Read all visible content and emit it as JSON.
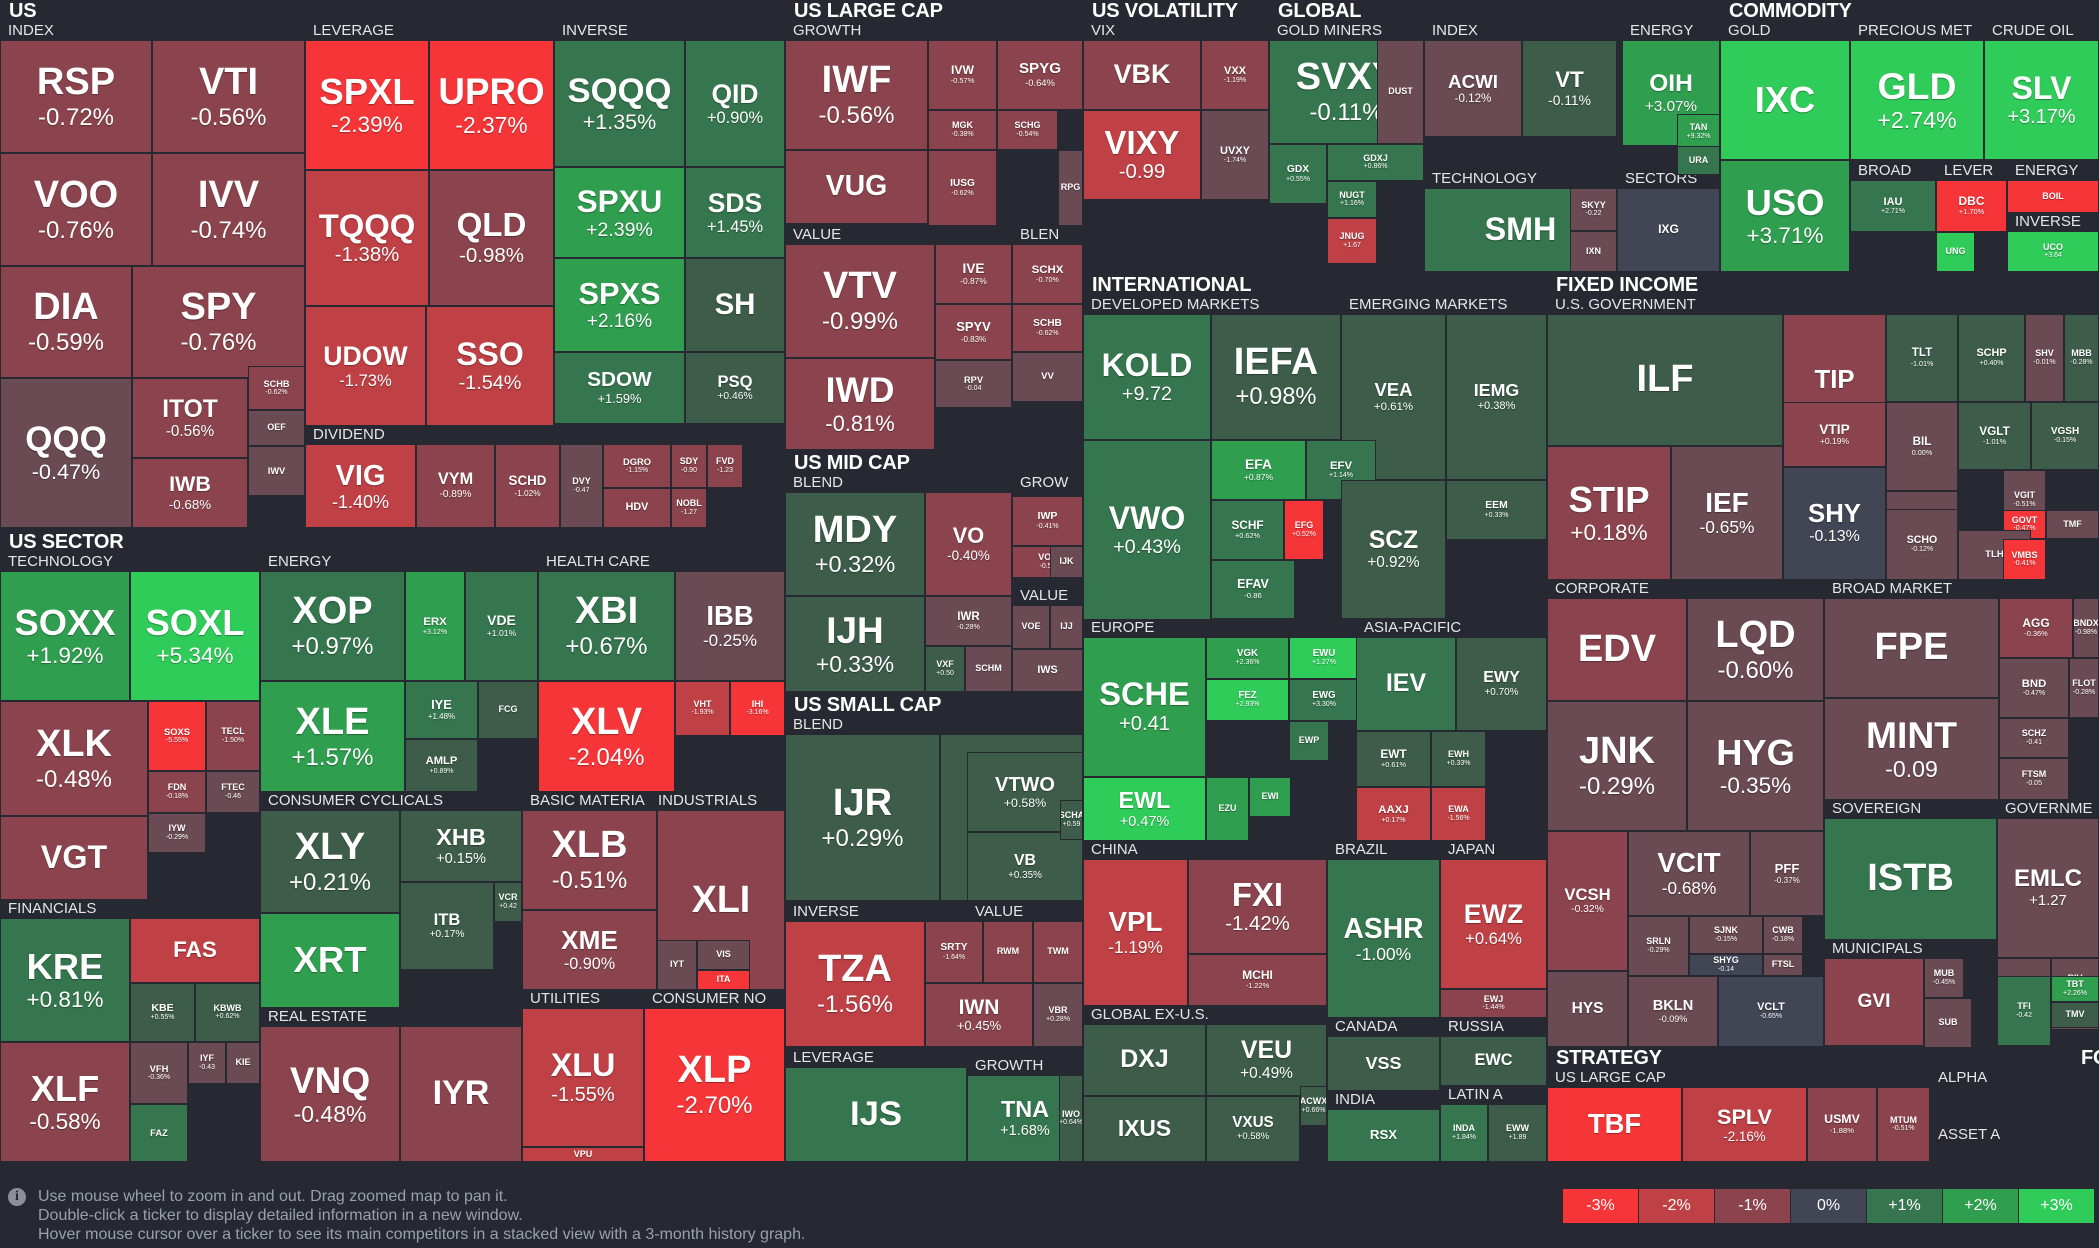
{
  "groups": [
    {
      "id": "us",
      "label": "US"
    },
    {
      "id": "us-sector",
      "label": "US SECTOR"
    },
    {
      "id": "us-large-cap",
      "label": "US LARGE CAP"
    },
    {
      "id": "us-mid-cap",
      "label": "US MID CAP"
    },
    {
      "id": "us-small-cap",
      "label": "US SMALL CAP"
    },
    {
      "id": "us-volatility",
      "label": "US VOLATILITY"
    },
    {
      "id": "global",
      "label": "GLOBAL"
    },
    {
      "id": "commodity",
      "label": "COMMODITY"
    },
    {
      "id": "international",
      "label": "INTERNATIONAL"
    },
    {
      "id": "fixed-income",
      "label": "FIXED INCOME"
    },
    {
      "id": "strategy",
      "label": "STRATEGY"
    },
    {
      "id": "fo",
      "label": "FO"
    }
  ],
  "subgroups": [
    "INDEX",
    "LEVERAGE",
    "INVERSE",
    "DIVIDEND",
    "TECHNOLOGY",
    "ENERGY",
    "HEALTH CARE",
    "CONSUMER CYCLICALS",
    "BASIC MATERIA",
    "INDUSTRIALS",
    "FINANCIALS",
    "REAL ESTATE",
    "UTILITIES",
    "CONSUMER NO",
    "GROWTH",
    "VALUE",
    "BLEN",
    "BLEND",
    "GROW",
    "VALUE",
    "BLEND",
    "INVERSE",
    "VALUE",
    "LEVERAGE",
    "GROWTH",
    "VIX",
    "LEVERAGE",
    "INVERS",
    "GOLD MINERS",
    "INDEX",
    "TECHNOLOGY",
    "SECTORS",
    "ENERGY",
    "GOLD",
    "PRECIOUS MET",
    "CRUDE OIL",
    "BROAD",
    "LEVER",
    "ENERGY",
    "INVERSE",
    "DEVELOPED MARKETS",
    "EMERGING MARKETS",
    "EUROPE",
    "ASIA-PACIFIC",
    "CHINA",
    "BRAZIL",
    "JAPAN",
    "GLOBAL EX-U.S.",
    "CANADA",
    "RUSSIA",
    "INDIA",
    "LATIN A",
    "U.S. GOVERNMENT",
    "CORPORATE",
    "BROAD MARKET",
    "SOVEREIGN",
    "GOVERNME",
    "MUNICIPALS",
    "INVERSE",
    "US LARGE CAP",
    "ALPHA",
    "ASSET A"
  ],
  "tiles": [
    [
      "RSP",
      "-0.72%"
    ],
    [
      "VTI",
      "-0.56%"
    ],
    [
      "VOO",
      "-0.76%"
    ],
    [
      "IVV",
      "-0.74%"
    ],
    [
      "DIA",
      "-0.59%"
    ],
    [
      "SPY",
      "-0.76%"
    ],
    [
      "QQQ",
      "-0.47%"
    ],
    [
      "ITOT",
      "-0.56%"
    ],
    [
      "SCHB",
      "-0.62%"
    ],
    [
      "OEF",
      ""
    ],
    [
      "IWB",
      "-0.68%"
    ],
    [
      "IWV",
      ""
    ],
    [
      "SPXL",
      "-2.39%"
    ],
    [
      "UPRO",
      "-2.37%"
    ],
    [
      "TQQQ",
      "-1.38%"
    ],
    [
      "QLD",
      "-0.98%"
    ],
    [
      "UDOW",
      "-1.73%"
    ],
    [
      "SSO",
      "-1.54%"
    ],
    [
      "SQQQ",
      "+1.35%"
    ],
    [
      "QID",
      "+0.90%"
    ],
    [
      "SPXU",
      "+2.39%"
    ],
    [
      "SDS",
      "+1.45%"
    ],
    [
      "SPXS",
      "+2.16%"
    ],
    [
      "SH",
      ""
    ],
    [
      "SDOW",
      "+1.59%"
    ],
    [
      "PSQ",
      "+0.46%"
    ],
    [
      "VIG",
      "-1.40%"
    ],
    [
      "VYM",
      "-0.89%"
    ],
    [
      "SCHD",
      "-1.02%"
    ],
    [
      "DVY",
      "-0.47"
    ],
    [
      "DGRO",
      "-1.15%"
    ],
    [
      "SDY",
      "-0.90"
    ],
    [
      "FVD",
      "-1.23"
    ],
    [
      "HDV",
      ""
    ],
    [
      "NOBL",
      "-1.27"
    ],
    [
      "SOXX",
      "+1.92%"
    ],
    [
      "SOXL",
      "+5.34%"
    ],
    [
      "XLK",
      "-0.48%"
    ],
    [
      "SOXS",
      "-5.55%"
    ],
    [
      "TECL",
      "-1.50%"
    ],
    [
      "FDN",
      "-0.18%"
    ],
    [
      "FTEC",
      "-0.46"
    ],
    [
      "IYW",
      "-0.29%"
    ],
    [
      "VGT",
      ""
    ],
    [
      "XOP",
      "+0.97%"
    ],
    [
      "ERX",
      "+3.12%"
    ],
    [
      "VDE",
      "+1.01%"
    ],
    [
      "XLE",
      "+1.57%"
    ],
    [
      "IYE",
      "+1.48%"
    ],
    [
      "FCG",
      ""
    ],
    [
      "AMLP",
      "+0.89%"
    ],
    [
      "XBI",
      "+0.67%"
    ],
    [
      "IBB",
      "-0.25%"
    ],
    [
      "XLV",
      "-2.04%"
    ],
    [
      "VHT",
      "-1.93%"
    ],
    [
      "IHI",
      "-3.16%"
    ],
    [
      "XLY",
      "+0.21%"
    ],
    [
      "XHB",
      "+0.15%"
    ],
    [
      "XRT",
      ""
    ],
    [
      "ITB",
      "+0.17%"
    ],
    [
      "VCR",
      "+0.42"
    ],
    [
      "XLB",
      "-0.51%"
    ],
    [
      "XME",
      "-0.90%"
    ],
    [
      "XLI",
      ""
    ],
    [
      "IYT",
      ""
    ],
    [
      "VIS",
      ""
    ],
    [
      "ITA",
      ""
    ],
    [
      "KRE",
      "+0.81%"
    ],
    [
      "FAS",
      ""
    ],
    [
      "KBE",
      "+0.55%"
    ],
    [
      "KBWB",
      "+0.62%"
    ],
    [
      "XLF",
      "-0.58%"
    ],
    [
      "VFH",
      "-0.36%"
    ],
    [
      "IYF",
      "-0.43"
    ],
    [
      "KIE",
      ""
    ],
    [
      "FAZ",
      ""
    ],
    [
      "VNQ",
      "-0.48%"
    ],
    [
      "IYR",
      ""
    ],
    [
      "XLU",
      "-1.55%"
    ],
    [
      "VPU",
      ""
    ],
    [
      "XLP",
      "-2.70%"
    ],
    [
      "IWF",
      "-0.56%"
    ],
    [
      "IVW",
      "-0.57%"
    ],
    [
      "SPYG",
      "-0.64%"
    ],
    [
      "MGK",
      "-0.38%"
    ],
    [
      "SCHG",
      "-0.54%"
    ],
    [
      "VUG",
      ""
    ],
    [
      "IUSG",
      "-0.62%"
    ],
    [
      "RPG",
      ""
    ],
    [
      "VTV",
      "-0.99%"
    ],
    [
      "IVE",
      "-0.87%"
    ],
    [
      "SCHX",
      "-0.70%"
    ],
    [
      "SPYV",
      "-0.83%"
    ],
    [
      "SCHB",
      "-0.62%"
    ],
    [
      "IWD",
      "-0.81%"
    ],
    [
      "RPV",
      "-0.04"
    ],
    [
      "VV",
      ""
    ],
    [
      "MDY",
      "+0.32%"
    ],
    [
      "VO",
      "-0.40%"
    ],
    [
      "IWP",
      "-0.41%"
    ],
    [
      "VOT",
      "-0.52"
    ],
    [
      "IJK",
      ""
    ],
    [
      "IJH",
      "+0.33%"
    ],
    [
      "IWR",
      "-0.28%"
    ],
    [
      "VXF",
      "+0.50"
    ],
    [
      "SCHM",
      ""
    ],
    [
      "VOE",
      ""
    ],
    [
      "IJJ",
      ""
    ],
    [
      "IWS",
      ""
    ],
    [
      "IJR",
      "+0.29%"
    ],
    [
      "IWM",
      "+0.55%"
    ],
    [
      "VTWO",
      "+0.58%"
    ],
    [
      "VB",
      "+0.35%"
    ],
    [
      "SCHA",
      "+0.59"
    ],
    [
      "TZA",
      "-1.56%"
    ],
    [
      "SRTY",
      "-1.64%"
    ],
    [
      "RWM",
      ""
    ],
    [
      "TWM",
      ""
    ],
    [
      "IWN",
      "+0.45%"
    ],
    [
      "VBR",
      "+0.28%"
    ],
    [
      "IJS",
      ""
    ],
    [
      "TNA",
      "+1.68%"
    ],
    [
      "IWO",
      "+0.64%"
    ],
    [
      "VBK",
      ""
    ],
    [
      "VXX",
      "-1.19%"
    ],
    [
      "VIXY",
      "-0.99"
    ],
    [
      "UVXY",
      "-1.74%"
    ],
    [
      "SVXY",
      "-0.11%"
    ],
    [
      "GDX",
      "+0.55%"
    ],
    [
      "GDXJ",
      "+0.86%"
    ],
    [
      "NUGT",
      "+1.16%"
    ],
    [
      "JNUG",
      "+1.67"
    ],
    [
      "DUST",
      ""
    ],
    [
      "ACWI",
      "-0.12%"
    ],
    [
      "VT",
      "-0.11%"
    ],
    [
      "SMH",
      ""
    ],
    [
      "SKYY",
      "-0.22"
    ],
    [
      "IXN",
      ""
    ],
    [
      "IXG",
      ""
    ],
    [
      "OIH",
      "+3.07%"
    ],
    [
      "TAN",
      "+9.32%"
    ],
    [
      "URA",
      ""
    ],
    [
      "IXC",
      ""
    ],
    [
      "GLD",
      "+2.74%"
    ],
    [
      "SLV",
      "+3.17%"
    ],
    [
      "USO",
      "+3.71%"
    ],
    [
      "IAU",
      "+2.71%"
    ],
    [
      "DBC",
      "+1.70%"
    ],
    [
      "BOIL",
      ""
    ],
    [
      "UNG",
      ""
    ],
    [
      "UCO",
      "+3.64"
    ],
    [
      "KOLD",
      "+9.72"
    ],
    [
      "IEFA",
      "+0.98%"
    ],
    [
      "VEA",
      "+0.61%"
    ],
    [
      "IEMG",
      "+0.38%"
    ],
    [
      "VWO",
      "+0.43%"
    ],
    [
      "EFA",
      "+0.87%"
    ],
    [
      "EFV",
      "+1.14%"
    ],
    [
      "SCHF",
      "+0.62%"
    ],
    [
      "EFG",
      "+0.52%"
    ],
    [
      "EFAV",
      "-0.86"
    ],
    [
      "SCZ",
      "+0.92%"
    ],
    [
      "EEM",
      "+0.33%"
    ],
    [
      "SCHE",
      "+0.41"
    ],
    [
      "VGK",
      "+2.36%"
    ],
    [
      "EWU",
      "+1.27%"
    ],
    [
      "FEZ",
      "+2.93%"
    ],
    [
      "EWG",
      "+3.30%"
    ],
    [
      "EWL",
      "+0.47%"
    ],
    [
      "EZU",
      ""
    ],
    [
      "EWI",
      ""
    ],
    [
      "EWP",
      ""
    ],
    [
      "IEV",
      ""
    ],
    [
      "EWY",
      "+0.70%"
    ],
    [
      "EWT",
      "+0.61%"
    ],
    [
      "EWH",
      "+0.33%"
    ],
    [
      "AAXJ",
      "+0.17%"
    ],
    [
      "EWA",
      "-1.56%"
    ],
    [
      "VPL",
      "-1.19%"
    ],
    [
      "FXI",
      "-1.42%"
    ],
    [
      "MCHI",
      "-1.22%"
    ],
    [
      "ASHR",
      "-1.00%"
    ],
    [
      "EWZ",
      "+0.64%"
    ],
    [
      "EWJ",
      "-1.44%"
    ],
    [
      "DXJ",
      ""
    ],
    [
      "VEU",
      "+0.49%"
    ],
    [
      "IXUS",
      ""
    ],
    [
      "VXUS",
      "+0.58%"
    ],
    [
      "ACWX",
      "+0.66%"
    ],
    [
      "VSS",
      ""
    ],
    [
      "EWC",
      ""
    ],
    [
      "RSX",
      ""
    ],
    [
      "INDA",
      "+1.84%"
    ],
    [
      "EWW",
      "+1.89"
    ],
    [
      "ILF",
      ""
    ],
    [
      "TIP",
      ""
    ],
    [
      "TLT",
      "-1.01%"
    ],
    [
      "SCHP",
      "+0.40%"
    ],
    [
      "SHV",
      "-0.01%"
    ],
    [
      "MBB",
      "-0.28%"
    ],
    [
      "VTIP",
      "+0.19%"
    ],
    [
      "VGLT",
      "-1.01%"
    ],
    [
      "VGSH",
      "-0.15%"
    ],
    [
      "STIP",
      "+0.18%"
    ],
    [
      "IEF",
      "-0.65%"
    ],
    [
      "SHY",
      "-0.13%"
    ],
    [
      "BIL",
      "0.00%"
    ],
    [
      "IEI",
      "-0.40%"
    ],
    [
      "VGIT",
      "-0.51%"
    ],
    [
      "SCHO",
      "-0.12%"
    ],
    [
      "GOVT",
      "-0.47%"
    ],
    [
      "TMF",
      ""
    ],
    [
      "TLH",
      ""
    ],
    [
      "VMBS",
      "-0.41%"
    ],
    [
      "EDV",
      ""
    ],
    [
      "LQD",
      "-0.60%"
    ],
    [
      "JNK",
      "-0.29%"
    ],
    [
      "HYG",
      "-0.35%"
    ],
    [
      "VCSH",
      "-0.32%"
    ],
    [
      "VCIT",
      "-0.68%"
    ],
    [
      "PFF",
      "-0.37%"
    ],
    [
      "SRLN",
      "-0.29%"
    ],
    [
      "SJNK",
      "-0.15%"
    ],
    [
      "CWB",
      "-0.18%"
    ],
    [
      "SHYG",
      "-0.14"
    ],
    [
      "FTSL",
      ""
    ],
    [
      "HYS",
      ""
    ],
    [
      "BKLN",
      "-0.09%"
    ],
    [
      "VCLT",
      "-0.65%"
    ],
    [
      "FPE",
      ""
    ],
    [
      "AGG",
      "-0.36%"
    ],
    [
      "BNDX",
      "-0.98%"
    ],
    [
      "MINT",
      "-0.09"
    ],
    [
      "BND",
      "-0.47%"
    ],
    [
      "FLOT",
      "-0.28%"
    ],
    [
      "SCHZ",
      "-0.41"
    ],
    [
      "FTSM",
      "-0.05"
    ],
    [
      "ISTB",
      ""
    ],
    [
      "EMB",
      "+0.87%"
    ],
    [
      "EMLC",
      "+1.27"
    ],
    [
      "BSV",
      "-0.23%"
    ],
    [
      "BIV",
      "-0.53%"
    ],
    [
      "BLV",
      ""
    ],
    [
      "GVI",
      ""
    ],
    [
      "MUB",
      "-0.45%"
    ],
    [
      "SUB",
      ""
    ],
    [
      "TFI",
      "-0.42"
    ],
    [
      "TBT",
      "+2.26%"
    ],
    [
      "TMV",
      ""
    ],
    [
      "TBF",
      ""
    ],
    [
      "SPLV",
      "-2.16%"
    ],
    [
      "USMV",
      "-1.88%"
    ],
    [
      "MTUM",
      "-0.51%"
    ],
    [
      "QUAL",
      "-0.74%"
    ]
  ],
  "footer": {
    "help": [
      "Use mouse wheel to zoom in and out. Drag zoomed map to pan it.",
      "Double-click a ticker to display detailed information in a new window.",
      "Hover mouse cursor over a ticker to see its main competitors in a stacked view with a 3-month history graph."
    ],
    "legend": [
      "-3%",
      "-2%",
      "-1%",
      "0%",
      "+1%",
      "+2%",
      "+3%"
    ],
    "legend_colors": [
      "#f63538",
      "#bf4045",
      "#8b444e",
      "#414554",
      "#35764e",
      "#2f9e4f",
      "#30cc5a"
    ]
  }
}
